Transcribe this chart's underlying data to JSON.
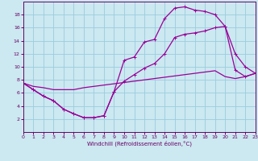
{
  "xlabel": "Windchill (Refroidissement éolien,°C)",
  "bg_color": "#cce8f0",
  "grid_color": "#99cce0",
  "line_color": "#990099",
  "line1_x": [
    0,
    1,
    2,
    3,
    4,
    5,
    6,
    7,
    8,
    9,
    10,
    11,
    12,
    13,
    14,
    15,
    16,
    17,
    18,
    19,
    20,
    21,
    22,
    23
  ],
  "line1_y": [
    7.5,
    6.5,
    5.5,
    4.8,
    3.5,
    2.8,
    2.2,
    2.2,
    2.5,
    6.2,
    11.0,
    11.5,
    13.8,
    14.2,
    17.4,
    19.0,
    19.2,
    18.7,
    18.5,
    18.0,
    16.2,
    12.0,
    10.0,
    9.0
  ],
  "line2_x": [
    0,
    1,
    2,
    3,
    4,
    5,
    6,
    7,
    8,
    9,
    10,
    11,
    12,
    13,
    14,
    15,
    16,
    17,
    18,
    19,
    20,
    21,
    22,
    23
  ],
  "line2_y": [
    7.5,
    6.5,
    5.5,
    4.8,
    3.5,
    2.8,
    2.2,
    2.2,
    2.5,
    6.2,
    7.8,
    8.8,
    9.8,
    10.5,
    12.0,
    14.5,
    15.0,
    15.2,
    15.5,
    16.0,
    16.2,
    9.5,
    8.5,
    9.0
  ],
  "line3_x": [
    0,
    1,
    2,
    3,
    4,
    5,
    6,
    7,
    8,
    9,
    10,
    11,
    12,
    13,
    14,
    15,
    16,
    17,
    18,
    19,
    20,
    21,
    22,
    23
  ],
  "line3_y": [
    7.5,
    7.0,
    6.8,
    6.5,
    6.5,
    6.5,
    6.8,
    7.0,
    7.2,
    7.4,
    7.6,
    7.8,
    8.0,
    8.2,
    8.4,
    8.6,
    8.8,
    9.0,
    9.2,
    9.4,
    8.5,
    8.2,
    8.5,
    9.0
  ],
  "xlim": [
    0,
    23
  ],
  "ylim": [
    0,
    20
  ],
  "yticks": [
    2,
    4,
    6,
    8,
    10,
    12,
    14,
    16,
    18
  ],
  "xticks": [
    0,
    1,
    2,
    3,
    4,
    5,
    6,
    7,
    8,
    9,
    10,
    11,
    12,
    13,
    14,
    15,
    16,
    17,
    18,
    19,
    20,
    21,
    22,
    23
  ]
}
